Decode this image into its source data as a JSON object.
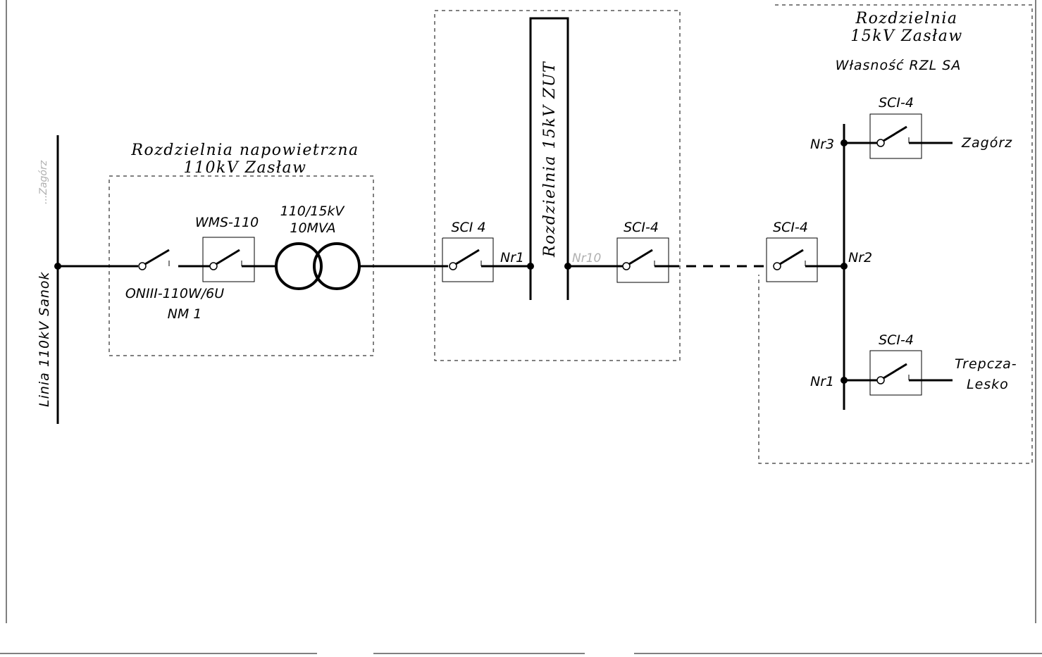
{
  "diagram": {
    "substation_110kv": {
      "title_line1": "Rozdzielnia napowietrzna",
      "title_line2": "110kV Zasław"
    },
    "switchgear_zut": {
      "title": "Rozdzielnia 15kV ZUT"
    },
    "switchgear_15kv": {
      "title_line1": "Rozdzielnia",
      "title_line2": "15kV Zasław",
      "owner": "Własność RZL SA"
    },
    "line_110kv": "Linia 110kV Sanok",
    "line_110kv_faint": "...Zagórz",
    "disconnector_label_1": "ONIII-110W/6U",
    "disconnector_label_2": "NM 1",
    "breaker_110": "WMS-110",
    "transformer_ratio": "110/15kV",
    "transformer_power": "10MVA",
    "breaker_sci_a": "SCI 4",
    "breaker_sci_b": "SCI-4",
    "breaker_sci_c": "SCI-4",
    "breaker_sci_top": "SCI-4",
    "breaker_sci_bottom": "SCI-4",
    "bus_nr1_left": "Nr1",
    "bus_nr10": "Nr10",
    "bus_nr2": "Nr2",
    "bus_nr3": "Nr3",
    "bus_nr1_right": "Nr1",
    "feeder_zagorz": "Zagórz",
    "feeder_trepcza_1": "Trepcza-",
    "feeder_trepcza_2": "Lesko"
  }
}
